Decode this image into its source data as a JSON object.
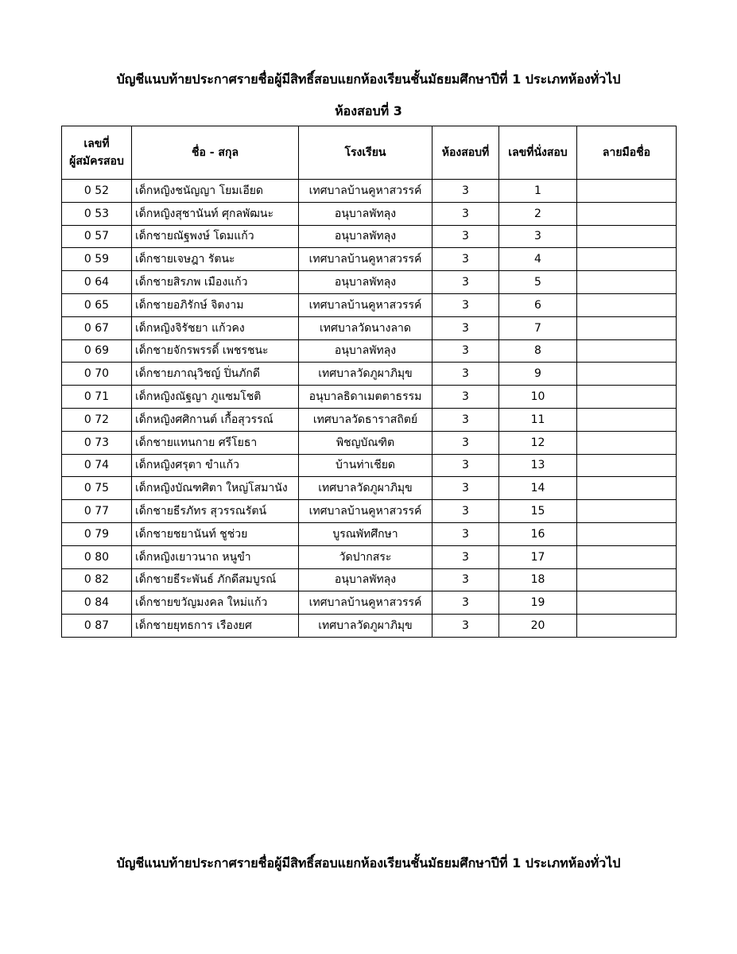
{
  "header": {
    "title": "บัญชีแนบท้ายประกาศรายชื่อผู้มีสิทธิ์สอบแยกห้องเรียนชั้นมัธยมศึกษาปีที่ 1  ประเภทห้องทั่วไป",
    "subtitle": "ห้องสอบที่ 3"
  },
  "table": {
    "headers": [
      [
        "เลขที่",
        "ผู้สมัครสอบ"
      ],
      "ชื่อ - สกุล",
      "โรงเรียน",
      "ห้องสอบที่",
      "เลขที่นั่งสอบ",
      "ลายมือชื่อ"
    ],
    "rows": [
      [
        "0 52",
        "เด็กหญิงชนัญญา  โยมเอียด",
        "เทศบาลบ้านคูหาสวรรค์",
        "3",
        "1"
      ],
      [
        "0 53",
        "เด็กหญิงสุชานันท์  ศุกลพัฒนะ",
        "อนุบาลพัทลุง",
        "3",
        "2"
      ],
      [
        "0 57",
        "เด็กชายณัฐพงษ์  โดมแก้ว",
        "อนุบาลพัทลุง",
        "3",
        "3"
      ],
      [
        "0 59",
        "เด็กชายเจษฎา  รัตนะ",
        "เทศบาลบ้านคูหาสวรรค์",
        "3",
        "4"
      ],
      [
        "0 64",
        "เด็กชายสิรภพ  เมืองแก้ว",
        "อนุบาลพัทลุง",
        "3",
        "5"
      ],
      [
        "0 65",
        "เด็กชายอภิรักษ์  จิตงาม",
        "เทศบาลบ้านคูหาสวรรค์",
        "3",
        "6"
      ],
      [
        "0 67",
        "เด็กหญิงจิรัชยา  แก้วคง",
        "เทศบาลวัดนางลาด",
        "3",
        "7"
      ],
      [
        "0 69",
        "เด็กชายจักรพรรดิ์  เพชรชนะ",
        "อนุบาลพัทลุง",
        "3",
        "8"
      ],
      [
        "0 70",
        "เด็กชายภาณุวิชญ์  ปิ่นภักดี",
        "เทศบาลวัดภูผาภิมุข",
        "3",
        "9"
      ],
      [
        "0 71",
        "เด็กหญิงณัฐญา  ภูแซมโชติ",
        "อนุบาลธิดาเมตตาธรรม",
        "3",
        "10"
      ],
      [
        "0 72",
        "เด็กหญิงศศิกานต์  เกื้อสุวรรณ์",
        "เทศบาลวัดธาราสถิตย์",
        "3",
        "11"
      ],
      [
        "0 73",
        "เด็กชายแทนกาย  ศรีโยธา",
        "พิชญบัณฑิต",
        "3",
        "12"
      ],
      [
        "0 74",
        "เด็กหญิงศรุตา  ขำแก้ว",
        "บ้านท่าเชียด",
        "3",
        "13"
      ],
      [
        "0 75",
        "เด็กหญิงบัณฑศิตา  ใหญ่โสมานัง",
        "เทศบาลวัดภูผาภิมุข",
        "3",
        "14"
      ],
      [
        "0 77",
        "เด็กชายธีรภัทร  สุวรรณรัตน์",
        "เทศบาลบ้านคูหาสวรรค์",
        "3",
        "15"
      ],
      [
        "0 79",
        "เด็กชายชยานันท์  ชูช่วย",
        "บูรณพัทศึกษา",
        "3",
        "16"
      ],
      [
        "0 80",
        "เด็กหญิงเยาวนาถ  หนูขำ",
        "วัดปากสระ",
        "3",
        "17"
      ],
      [
        "0 82",
        "เด็กชายธีระพันธ์  ภักดีสมบูรณ์",
        "อนุบาลพัทลุง",
        "3",
        "18"
      ],
      [
        "0 84",
        "เด็กชายขวัญมงคล  ใหม่แก้ว",
        "เทศบาลบ้านคูหาสวรรค์",
        "3",
        "19"
      ],
      [
        "0 87",
        "เด็กชายยุทธการ  เรืองยศ",
        "เทศบาลวัดภูผาภิมุข",
        "3",
        "20"
      ]
    ]
  },
  "footer": {
    "title": "บัญชีแนบท้ายประกาศรายชื่อผู้มีสิทธิ์สอบแยกห้องเรียนชั้นมัธยมศึกษาปีที่ 1  ประเภทห้องทั่วไป"
  }
}
